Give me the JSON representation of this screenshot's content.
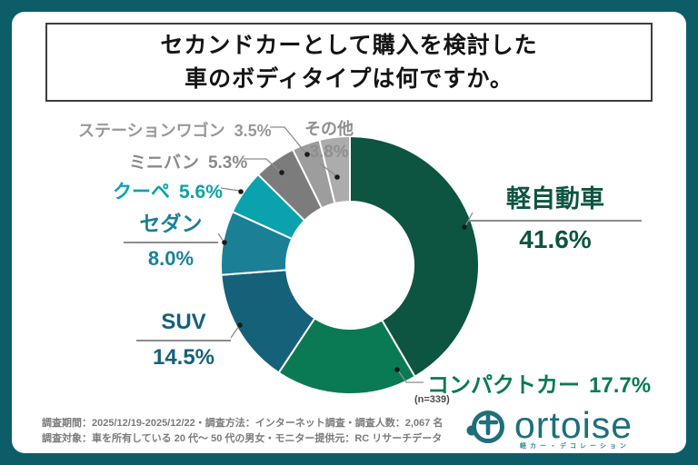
{
  "title": {
    "line1": "セカンドカーとして購入を検討した",
    "line2": "車のボディタイプは何ですか。"
  },
  "chart_data": {
    "type": "pie",
    "title": "セカンドカーとして購入を検討した車のボディタイプは何ですか。",
    "sample_note": "(n=339)",
    "legend_position": "around-donut",
    "layout": {
      "start_angle_deg": 0,
      "direction": "clockwise",
      "donut_hole_ratio": 0.49
    },
    "categories": [
      "軽自動車",
      "コンパクトカー",
      "SUV",
      "セダン",
      "クーペ",
      "ミニバン",
      "ステーションワゴン",
      "その他"
    ],
    "values": [
      41.6,
      17.7,
      14.5,
      8.0,
      5.6,
      5.3,
      3.5,
      3.8
    ],
    "segments": [
      {
        "label": "軽自動車",
        "value": 41.6,
        "display": "41.6%",
        "color": "#0d5441",
        "label_color": "#0d5441"
      },
      {
        "label": "コンパクトカー",
        "value": 17.7,
        "display": "17.7%",
        "color": "#0a7a54",
        "label_color": "#0a7a54"
      },
      {
        "label": "SUV",
        "value": 14.5,
        "display": "14.5%",
        "color": "#15617a",
        "label_color": "#15617a"
      },
      {
        "label": "セダン",
        "value": 8.0,
        "display": "8.0%",
        "color": "#1b8096",
        "label_color": "#1b8096"
      },
      {
        "label": "クーペ",
        "value": 5.6,
        "display": "5.6%",
        "color": "#0aa3ad",
        "label_color": "#0aa3ad"
      },
      {
        "label": "ミニバン",
        "value": 5.3,
        "display": "5.3%",
        "color": "#7c7c7c",
        "label_color": "#8a8a8a"
      },
      {
        "label": "ステーションワゴン",
        "value": 3.5,
        "display": "3.5%",
        "color": "#9d9d9d",
        "label_color": "#989898"
      },
      {
        "label": "その他",
        "value": 3.8,
        "display": "3.8%",
        "color": "#acacac",
        "label_color": "#8f8f8f"
      }
    ]
  },
  "footer": {
    "line1": "調査期間：2025/12/19-2025/12/22・調査方法：インターネット調査・調査人数：2,067 名",
    "line2": "調査対象：車を所有している 20 代〜 50 代の男女・モニター提供元：RC リサーチデータ"
  },
  "logo": {
    "wordmark": "ortoise",
    "tagline": "軽カー・デコレーション"
  },
  "colors": {
    "frame": "#0d5d68",
    "logo": "#1e6f7a",
    "leader_line": "#8c8c8c",
    "leader_dot": "#1a1a1a"
  }
}
